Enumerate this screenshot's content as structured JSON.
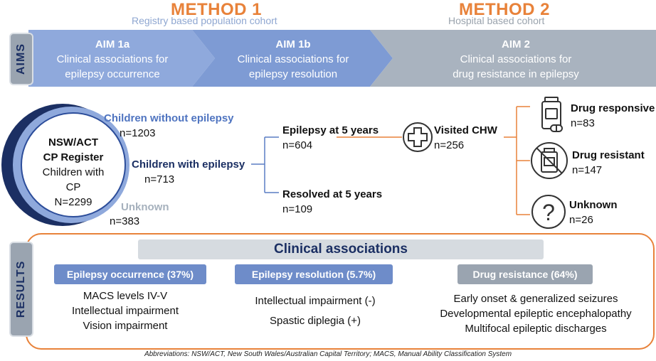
{
  "header": {
    "method1": "METHOD 1",
    "method1_cohort": "Registry based population cohort",
    "method2": "METHOD 2",
    "method2_cohort": "Hospital based cohort"
  },
  "aims": {
    "tab_label": "AIMS",
    "aim1a": {
      "title": "AIM 1a",
      "line1": "Clinical associations for",
      "line2": "epilepsy occurrence"
    },
    "aim1b": {
      "title": "AIM 1b",
      "line1": "Clinical associations for",
      "line2": "epilepsy resolution"
    },
    "aim2": {
      "title": "AIM 2",
      "line1": "Clinical associations for",
      "line2": "drug resistance in epilepsy"
    }
  },
  "flow": {
    "register": {
      "line1": "NSW/ACT",
      "line2": "CP Register",
      "line3": "Children with",
      "line4": "CP",
      "line5": "N=2299"
    },
    "without": {
      "label": "Children without epilepsy",
      "n": "n=1203"
    },
    "with": {
      "label": "Children with epilepsy",
      "n": "n=713"
    },
    "unknown": {
      "label": "Unknown",
      "n": "n=383"
    },
    "epilepsy5": {
      "label": "Epilepsy at 5 years",
      "n": "n=604"
    },
    "resolved5": {
      "label": "Resolved at 5 years",
      "n": "n=109"
    },
    "chw": {
      "label": "Visited CHW",
      "n": "n=256"
    },
    "responsive": {
      "label": "Drug responsive",
      "n": "n=83"
    },
    "resistant": {
      "label": "Drug resistant",
      "n": "n=147"
    },
    "unknown2": {
      "label": "Unknown",
      "n": "n=26"
    }
  },
  "results": {
    "tab_label": "RESULTS",
    "heading": "Clinical associations",
    "occurrence": {
      "label": "Epilepsy occurrence (37%)",
      "items": [
        "MACS levels IV-V",
        "Intellectual impairment",
        "Vision impairment"
      ]
    },
    "resolution": {
      "label": "Epilepsy resolution (5.7%)",
      "items": [
        "Intellectual impairment (-)",
        "Spastic diplegia (+)"
      ]
    },
    "resistance": {
      "label": "Drug resistance (64%)",
      "items": [
        "Early onset & generalized seizures",
        "Developmental epileptic encephalopathy",
        "Multifocal epileptic discharges"
      ]
    }
  },
  "footer": "Abbreviations: NSW/ACT, New South Wales/Australian Capital Territory; MACS, Manual Ability Classification System",
  "colors": {
    "orange": "#e8823a",
    "navy": "#1b2f63",
    "blue_light": "#8fa9dc",
    "blue_mid": "#6e8cc9",
    "grey_blue": "#a9b3bf",
    "grey_pill": "#9aa4b0",
    "line_blue": "#5a7dc4"
  }
}
